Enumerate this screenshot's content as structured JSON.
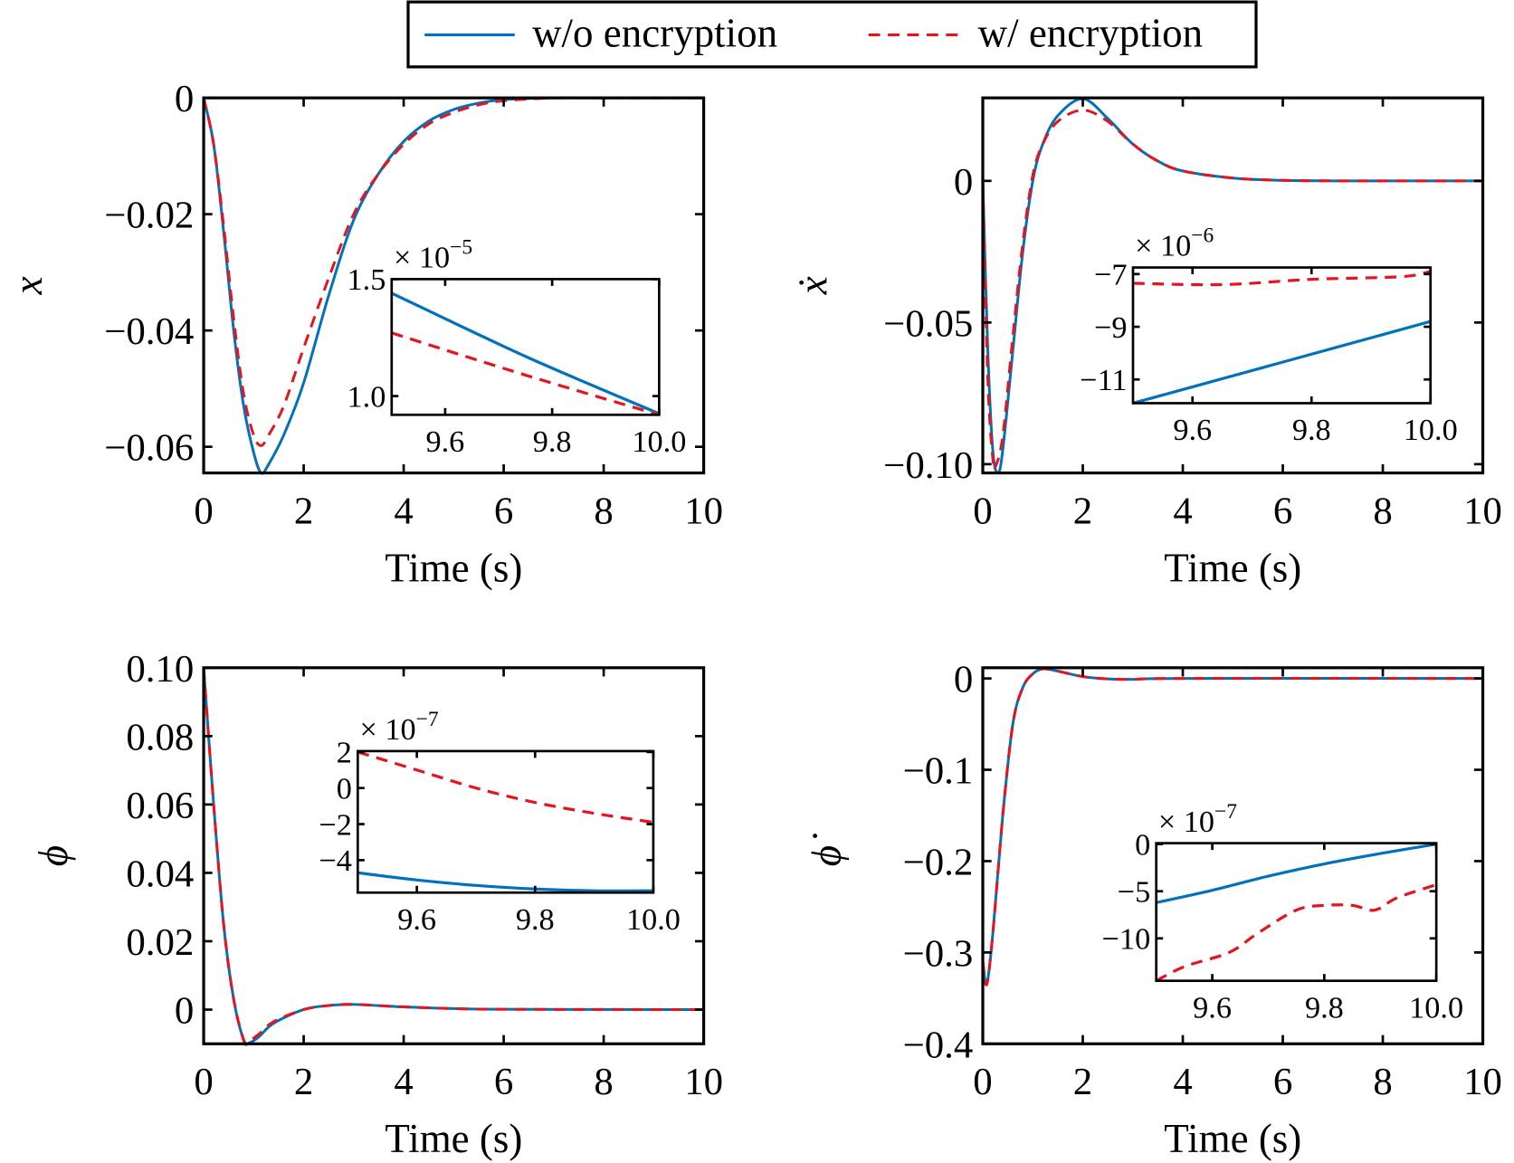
{
  "colors": {
    "without_encryption": "#0072bd",
    "with_encryption": "#e6141e"
  },
  "legend": {
    "placement": "top-center",
    "entries": [
      {
        "label": "w/o encryption",
        "style": "solid",
        "color": "#0072bd"
      },
      {
        "label": "w/ encryption",
        "style": "dashed",
        "color": "#e6141e"
      }
    ]
  },
  "chart_data": [
    {
      "type": "line",
      "xlabel": "Time (s)",
      "ylabel": "x",
      "xlim": [
        0,
        10
      ],
      "ylim": [
        -0.0645,
        0
      ],
      "xticks": [
        0,
        2,
        4,
        6,
        8,
        10
      ],
      "xtick_labels": [
        "0",
        "2",
        "4",
        "6",
        "8",
        "10"
      ],
      "yticks": [
        0,
        -0.02,
        -0.04,
        -0.06
      ],
      "ytick_labels": [
        "0",
        "−0.02",
        "−0.04",
        "−0.06"
      ],
      "series": [
        {
          "name": "w/o encryption",
          "x": [
            0,
            0.2,
            0.4,
            0.6,
            0.8,
            1.0,
            1.15,
            1.3,
            1.6,
            2,
            2.5,
            3,
            3.5,
            4,
            4.5,
            5,
            5.5,
            6,
            7,
            8,
            10
          ],
          "y": [
            0,
            -0.008,
            -0.023,
            -0.04,
            -0.053,
            -0.061,
            -0.0645,
            -0.063,
            -0.058,
            -0.049,
            -0.034,
            -0.021,
            -0.013,
            -0.0075,
            -0.004,
            -0.002,
            -0.0009,
            -0.0003,
            0,
            0,
            0
          ]
        },
        {
          "name": "w/ encryption",
          "x": [
            0,
            0.2,
            0.4,
            0.6,
            0.8,
            1.0,
            1.15,
            1.3,
            1.6,
            2,
            2.5,
            3,
            3.5,
            4,
            4.5,
            5,
            5.5,
            6,
            7,
            8,
            10
          ],
          "y": [
            0,
            -0.008,
            -0.022,
            -0.038,
            -0.051,
            -0.058,
            -0.0598,
            -0.058,
            -0.053,
            -0.043,
            -0.031,
            -0.02,
            -0.013,
            -0.008,
            -0.0045,
            -0.0025,
            -0.0012,
            -0.0005,
            0,
            0,
            0
          ]
        }
      ],
      "inset": {
        "xlim": [
          9.5,
          10
        ],
        "ylim": [
          0.92,
          1.5
        ],
        "multiplier": "× 10",
        "exponent": "−5",
        "xticks": [
          9.6,
          9.8,
          10
        ],
        "xtick_labels": [
          "9.6",
          "9.8",
          "10.0"
        ],
        "yticks": [
          1.5,
          1.0
        ],
        "ytick_labels": [
          "1.5",
          "1.0"
        ],
        "series": [
          {
            "name": "w/o encryption",
            "x": [
              9.5,
              9.75,
              10
            ],
            "y": [
              1.44,
              1.17,
              0.925
            ]
          },
          {
            "name": "w/ encryption",
            "x": [
              9.5,
              9.75,
              10
            ],
            "y": [
              1.27,
              1.09,
              0.92
            ]
          }
        ]
      }
    },
    {
      "type": "line",
      "xlabel": "Time (s)",
      "ylabel": "ẋ",
      "xlim": [
        0,
        10
      ],
      "ylim": [
        -0.1031,
        0.0293
      ],
      "xticks": [
        0,
        2,
        4,
        6,
        8,
        10
      ],
      "xtick_labels": [
        "0",
        "2",
        "4",
        "6",
        "8",
        "10"
      ],
      "yticks": [
        0,
        -0.05,
        -0.1
      ],
      "ytick_labels": [
        "0",
        "−0.05",
        "−0.10"
      ],
      "series": [
        {
          "name": "w/o encryption",
          "x": [
            0,
            0.1,
            0.2,
            0.3,
            0.4,
            0.6,
            0.8,
            1.0,
            1.2,
            1.5,
            2.0,
            2.5,
            3.0,
            3.5,
            4,
            5,
            6,
            7,
            10
          ],
          "y": [
            0,
            -0.06,
            -0.095,
            -0.103,
            -0.095,
            -0.06,
            -0.025,
            0,
            0.013,
            0.023,
            0.029,
            0.022,
            0.013,
            0.007,
            0.0035,
            0.001,
            0.0002,
            0,
            0
          ]
        },
        {
          "name": "w/ encryption",
          "x": [
            0,
            0.1,
            0.2,
            0.25,
            0.4,
            0.6,
            0.8,
            1.0,
            1.2,
            1.5,
            2.0,
            2.5,
            3.0,
            3.5,
            4,
            5,
            6,
            7,
            10
          ],
          "y": [
            0,
            -0.07,
            -0.098,
            -0.101,
            -0.09,
            -0.055,
            -0.022,
            0.002,
            0.013,
            0.021,
            0.025,
            0.021,
            0.013,
            0.007,
            0.0035,
            0.001,
            0.0002,
            0,
            0
          ]
        }
      ],
      "inset": {
        "xlim": [
          9.5,
          10
        ],
        "ylim": [
          -11.9,
          -6.75
        ],
        "multiplier": "× 10",
        "exponent": "−6",
        "xticks": [
          9.6,
          9.8,
          10
        ],
        "xtick_labels": [
          "9.6",
          "9.8",
          "10.0"
        ],
        "yticks": [
          -7,
          -9,
          -11
        ],
        "ytick_labels": [
          "−7",
          "−9",
          "−11"
        ],
        "series": [
          {
            "name": "w/o encryption",
            "x": [
              9.5,
              10
            ],
            "y": [
              -11.9,
              -8.8
            ]
          },
          {
            "name": "w/ encryption",
            "x": [
              9.5,
              9.65,
              9.8,
              9.95,
              10
            ],
            "y": [
              -7.35,
              -7.4,
              -7.2,
              -7.1,
              -6.9
            ]
          }
        ]
      }
    },
    {
      "type": "line",
      "xlabel": "Time (s)",
      "ylabel": "ϕ",
      "xlim": [
        0,
        10
      ],
      "ylim": [
        -0.01,
        0.1
      ],
      "xticks": [
        0,
        2,
        4,
        6,
        8,
        10
      ],
      "xtick_labels": [
        "0",
        "2",
        "4",
        "6",
        "8",
        "10"
      ],
      "yticks": [
        0.1,
        0.08,
        0.06,
        0.04,
        0.02,
        0
      ],
      "ytick_labels": [
        "0.10",
        "0.08",
        "0.06",
        "0.04",
        "0.02",
        "0"
      ],
      "series": [
        {
          "name": "w/o encryption",
          "x": [
            0,
            0.2,
            0.4,
            0.6,
            0.8,
            0.9,
            1.1,
            1.4,
            2,
            2.5,
            3,
            4,
            5,
            6,
            10
          ],
          "y": [
            0.1,
            0.06,
            0.025,
            0.003,
            -0.009,
            -0.0098,
            -0.008,
            -0.004,
            0,
            0.0012,
            0.0015,
            0.0008,
            0.0003,
            0.0001,
            0
          ]
        },
        {
          "name": "w/ encryption",
          "x": [
            0,
            0.2,
            0.4,
            0.6,
            0.8,
            0.9,
            1.1,
            1.4,
            2,
            2.5,
            3,
            4,
            5,
            6,
            10
          ],
          "y": [
            0.1,
            0.06,
            0.025,
            0.003,
            -0.0088,
            -0.0093,
            -0.0072,
            -0.0035,
            0,
            0.0012,
            0.0015,
            0.0008,
            0.0003,
            0.0001,
            0
          ]
        }
      ],
      "inset": {
        "xlim": [
          9.5,
          10
        ],
        "ylim": [
          -5.8,
          2.05
        ],
        "multiplier": "× 10",
        "exponent": "−7",
        "xticks": [
          9.6,
          9.8,
          10
        ],
        "xtick_labels": [
          "9.6",
          "9.8",
          "10.0"
        ],
        "yticks": [
          2,
          0,
          -2,
          -4
        ],
        "ytick_labels": [
          "2",
          "0",
          "−2",
          "−4"
        ],
        "series": [
          {
            "name": "w/o encryption",
            "x": [
              9.5,
              9.6,
              9.7,
              9.8,
              9.9,
              10
            ],
            "y": [
              -4.7,
              -5.1,
              -5.4,
              -5.6,
              -5.7,
              -5.7
            ]
          },
          {
            "name": "w/ encryption",
            "x": [
              9.5,
              9.6,
              9.7,
              9.8,
              9.9,
              10
            ],
            "y": [
              2.0,
              1.0,
              0.0,
              -0.8,
              -1.4,
              -1.9
            ]
          }
        ]
      }
    },
    {
      "type": "line",
      "xlabel": "Time (s)",
      "ylabel": "ϕ̇",
      "xlim": [
        0,
        10
      ],
      "ylim": [
        -0.4,
        0.0117
      ],
      "xticks": [
        0,
        2,
        4,
        6,
        8,
        10
      ],
      "xtick_labels": [
        "0",
        "2",
        "4",
        "6",
        "8",
        "10"
      ],
      "yticks": [
        0,
        -0.1,
        -0.2,
        -0.3,
        -0.4
      ],
      "ytick_labels": [
        "0",
        "−0.1",
        "−0.2",
        "−0.3",
        "−0.4"
      ],
      "series": [
        {
          "name": "w/o encryption",
          "x": [
            0,
            0.08,
            0.2,
            0.4,
            0.6,
            0.8,
            1.0,
            1.2,
            1.5,
            2,
            2.5,
            3,
            4,
            10
          ],
          "y": [
            -0.31,
            -0.335,
            -0.28,
            -0.15,
            -0.05,
            -0.01,
            0.005,
            0.0105,
            0.008,
            0.002,
            -0.0005,
            -0.001,
            0,
            0
          ]
        },
        {
          "name": "w/ encryption",
          "x": [
            0,
            0.08,
            0.2,
            0.4,
            0.6,
            0.8,
            1.0,
            1.2,
            1.5,
            2,
            2.5,
            3,
            4,
            10
          ],
          "y": [
            -0.31,
            -0.335,
            -0.28,
            -0.15,
            -0.05,
            -0.01,
            0.005,
            0.0105,
            0.008,
            0.002,
            -0.0005,
            -0.001,
            0,
            0
          ]
        }
      ],
      "inset": {
        "xlim": [
          9.5,
          10
        ],
        "ylim": [
          -14.5,
          0.1
        ],
        "multiplier": "× 10",
        "exponent": "−7",
        "xticks": [
          9.6,
          9.8,
          10
        ],
        "xtick_labels": [
          "9.6",
          "9.8",
          "10.0"
        ],
        "yticks": [
          0,
          -5,
          -10
        ],
        "ytick_labels": [
          "0",
          "−5",
          "−10"
        ],
        "series": [
          {
            "name": "w/o encryption",
            "x": [
              9.5,
              9.6,
              9.7,
              9.8,
              9.9,
              10
            ],
            "y": [
              -6.2,
              -4.9,
              -3.4,
              -2.1,
              -1.0,
              0
            ]
          },
          {
            "name": "w/ encryption",
            "x": [
              9.5,
              9.55,
              9.63,
              9.68,
              9.75,
              9.8,
              9.85,
              9.89,
              9.93,
              10
            ],
            "y": [
              -14.5,
              -13,
              -11.5,
              -9.5,
              -7.0,
              -6.5,
              -6.5,
              -7.0,
              -5.7,
              -4.3
            ]
          }
        ]
      }
    }
  ]
}
